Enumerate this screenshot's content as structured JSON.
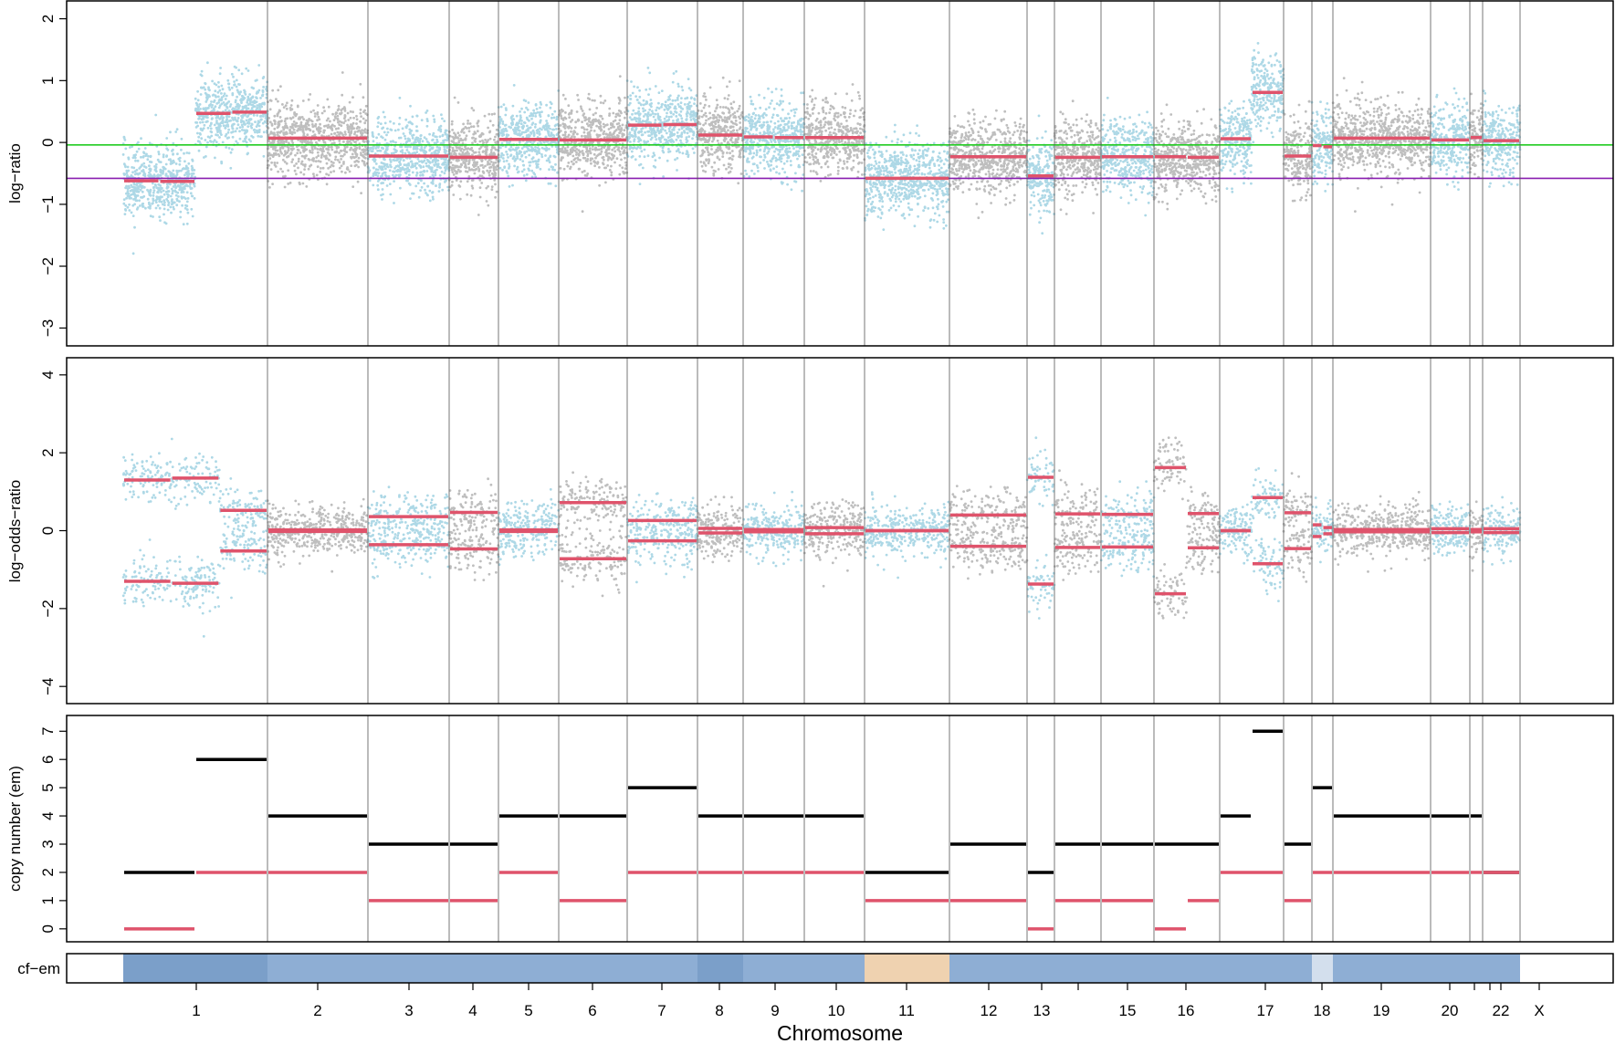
{
  "chart_data": [
    {
      "type": "scatter",
      "ylabel": "log−ratio",
      "ylim": [
        -3.2,
        2.2
      ],
      "yticks": [
        "−3",
        "−2",
        "−1",
        "0",
        "1",
        "2"
      ],
      "hlines": [
        {
          "y": -0.04,
          "color": "#22cc22"
        },
        {
          "y": -0.58,
          "color": "#8a1fb0"
        }
      ],
      "segments": [
        {
          "chr": "1",
          "values": [
            -0.62,
            -0.63,
            0.47,
            0.49
          ]
        },
        {
          "chr": "2",
          "values": [
            0.07
          ]
        },
        {
          "chr": "3",
          "values": [
            -0.22
          ]
        },
        {
          "chr": "4",
          "values": [
            -0.24
          ]
        },
        {
          "chr": "5",
          "values": [
            0.05
          ]
        },
        {
          "chr": "6",
          "values": [
            0.04
          ]
        },
        {
          "chr": "7",
          "values": [
            0.28,
            0.29
          ]
        },
        {
          "chr": "8",
          "values": [
            0.12
          ]
        },
        {
          "chr": "9",
          "values": [
            0.09,
            0.08
          ]
        },
        {
          "chr": "10",
          "values": [
            0.08
          ]
        },
        {
          "chr": "11",
          "values": [
            -0.58
          ]
        },
        {
          "chr": "12",
          "values": [
            -0.23
          ]
        },
        {
          "chr": "13",
          "values": [
            -0.54
          ]
        },
        {
          "chr": "14",
          "values": [
            -0.24
          ]
        },
        {
          "chr": "15",
          "values": [
            -0.23
          ]
        },
        {
          "chr": "16",
          "values": [
            -0.23,
            -0.24
          ]
        },
        {
          "chr": "17",
          "values": [
            0.06,
            0.81
          ]
        },
        {
          "chr": "18",
          "values": [
            -0.22
          ]
        },
        {
          "chr": "19",
          "values": [
            -0.05,
            -0.07
          ]
        },
        {
          "chr": "20",
          "values": [
            0.07
          ]
        },
        {
          "chr": "21",
          "values": [
            0.04
          ]
        },
        {
          "chr": "22",
          "values": [
            0.08
          ]
        },
        {
          "chr": "X",
          "values": [
            0.03
          ]
        }
      ]
    },
    {
      "type": "scatter",
      "ylabel": "log−odds−ratio",
      "ylim": [
        -4.3,
        4.3
      ],
      "yticks": [
        "−4",
        "−2",
        "0",
        "2",
        "4"
      ],
      "segments": [
        {
          "chr": "1",
          "upper": [
            1.3,
            1.35,
            0.52
          ],
          "lower": [
            -1.3,
            -1.35,
            -0.52
          ]
        },
        {
          "chr": "2",
          "upper": [
            0.02
          ],
          "lower": [
            -0.02
          ]
        },
        {
          "chr": "3",
          "upper": [
            0.36
          ],
          "lower": [
            -0.36
          ]
        },
        {
          "chr": "4",
          "upper": [
            0.47
          ],
          "lower": [
            -0.47
          ]
        },
        {
          "chr": "5",
          "upper": [
            0.02
          ],
          "lower": [
            -0.02
          ]
        },
        {
          "chr": "6",
          "upper": [
            0.72
          ],
          "lower": [
            -0.72
          ]
        },
        {
          "chr": "7",
          "upper": [
            0.26
          ],
          "lower": [
            -0.26
          ]
        },
        {
          "chr": "8",
          "upper": [
            0.06
          ],
          "lower": [
            -0.06
          ]
        },
        {
          "chr": "9",
          "upper": [
            0.03
          ],
          "lower": [
            -0.03
          ]
        },
        {
          "chr": "10",
          "upper": [
            0.08
          ],
          "lower": [
            -0.08
          ]
        },
        {
          "chr": "11",
          "upper": [
            0.0
          ],
          "lower": [
            0.0
          ]
        },
        {
          "chr": "12",
          "upper": [
            0.4
          ],
          "lower": [
            -0.4
          ]
        },
        {
          "chr": "13",
          "upper": [
            1.37
          ],
          "lower": [
            -1.37
          ]
        },
        {
          "chr": "14",
          "upper": [
            0.43
          ],
          "lower": [
            -0.43
          ]
        },
        {
          "chr": "15",
          "upper": [
            0.42
          ],
          "lower": [
            -0.42
          ]
        },
        {
          "chr": "16",
          "upper": [
            1.62,
            0.44
          ],
          "lower": [
            -1.62,
            -0.44
          ]
        },
        {
          "chr": "17",
          "upper": [
            0.0,
            0.85
          ],
          "lower": [
            0.0,
            -0.85
          ]
        },
        {
          "chr": "18",
          "upper": [
            0.46
          ],
          "lower": [
            -0.46
          ]
        },
        {
          "chr": "19",
          "upper": [
            0.15,
            0.08
          ],
          "lower": [
            -0.15,
            -0.08
          ]
        },
        {
          "chr": "20",
          "upper": [
            0.03
          ],
          "lower": [
            -0.03
          ]
        },
        {
          "chr": "21",
          "upper": [
            0.05
          ],
          "lower": [
            -0.05
          ]
        },
        {
          "chr": "22",
          "upper": [
            0.03
          ],
          "lower": [
            -0.03
          ]
        },
        {
          "chr": "X",
          "upper": [
            0.05
          ],
          "lower": [
            -0.05
          ]
        }
      ]
    },
    {
      "type": "scatter",
      "ylabel": "copy number (em)",
      "ylim": [
        -0.2,
        7.3
      ],
      "yticks": [
        "0",
        "1",
        "2",
        "3",
        "4",
        "5",
        "6",
        "7"
      ],
      "segments": [
        {
          "chr": "1",
          "total": [
            2,
            6
          ],
          "minor": [
            0,
            2
          ]
        },
        {
          "chr": "2",
          "total": [
            4
          ],
          "minor": [
            2
          ]
        },
        {
          "chr": "3",
          "total": [
            3
          ],
          "minor": [
            1
          ]
        },
        {
          "chr": "4",
          "total": [
            3
          ],
          "minor": [
            1
          ]
        },
        {
          "chr": "5",
          "total": [
            4
          ],
          "minor": [
            2
          ]
        },
        {
          "chr": "6",
          "total": [
            4
          ],
          "minor": [
            1
          ]
        },
        {
          "chr": "7",
          "total": [
            5
          ],
          "minor": [
            2
          ]
        },
        {
          "chr": "8",
          "total": [
            4
          ],
          "minor": [
            2
          ]
        },
        {
          "chr": "9",
          "total": [
            4
          ],
          "minor": [
            2
          ]
        },
        {
          "chr": "10",
          "total": [
            4
          ],
          "minor": [
            2
          ]
        },
        {
          "chr": "11",
          "total": [
            2
          ],
          "minor": [
            1
          ]
        },
        {
          "chr": "12",
          "total": [
            3
          ],
          "minor": [
            1
          ]
        },
        {
          "chr": "13",
          "total": [
            2
          ],
          "minor": [
            0
          ]
        },
        {
          "chr": "14",
          "total": [
            3
          ],
          "minor": [
            1
          ]
        },
        {
          "chr": "15",
          "total": [
            3
          ],
          "minor": [
            1
          ]
        },
        {
          "chr": "16",
          "total": [
            3
          ],
          "minor": [
            0,
            1
          ]
        },
        {
          "chr": "17",
          "total": [
            4,
            7
          ],
          "minor": [
            2
          ]
        },
        {
          "chr": "18",
          "total": [
            3
          ],
          "minor": [
            1
          ]
        },
        {
          "chr": "19",
          "total": [
            5
          ],
          "minor": [
            2
          ]
        },
        {
          "chr": "20",
          "total": [
            4
          ],
          "minor": [
            2
          ]
        },
        {
          "chr": "21",
          "total": [
            4
          ],
          "minor": [
            2
          ]
        },
        {
          "chr": "22",
          "total": [
            4
          ],
          "minor": [
            2
          ]
        },
        {
          "chr": "X",
          "total": [
            2
          ],
          "minor": [
            2
          ]
        }
      ]
    },
    {
      "type": "heatmap",
      "ylabel": "cf−em",
      "xlabel": "Chromosome",
      "chromosomes": [
        "1",
        "2",
        "3",
        "4",
        "5",
        "6",
        "7",
        "8",
        "9",
        "10",
        "11",
        "12",
        "13",
        "14",
        "15",
        "16",
        "17",
        "18",
        "19",
        "20",
        "21",
        "22",
        "X"
      ],
      "xtick_labels": [
        "1",
        "2",
        "3",
        "4",
        "5",
        "6",
        "7",
        "8",
        "9",
        "10",
        "11",
        "12",
        "13",
        "15",
        "16",
        "17",
        "18",
        "19",
        "20",
        "22",
        "X"
      ],
      "cf_colors": [
        "#7b9fc9",
        "#8eaed4",
        "#8eaed4",
        "#8eaed4",
        "#8eaed4",
        "#8eaed4",
        "#8eaed4",
        "#7b9fc9",
        "#8eaed4",
        "#8eaed4",
        "#efd2b0",
        "#8eaed4",
        "#8eaed4",
        "#8eaed4",
        "#8eaed4",
        "#8eaed4",
        "#8eaed4",
        "#8eaed4",
        "#d3dfed",
        "#8eaed4",
        "#8eaed4",
        "#8eaed4",
        "#8eaed4"
      ]
    }
  ],
  "colors": {
    "point_a": "#add8e6",
    "point_b": "#bebebe",
    "segment": "#df536b",
    "total_cn": "#000000"
  }
}
